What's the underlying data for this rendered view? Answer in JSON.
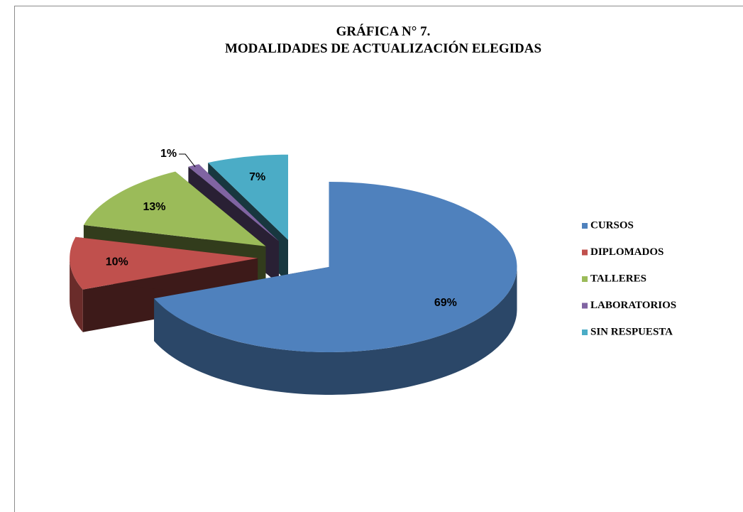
{
  "chart_data": {
    "type": "pie",
    "title": "GRÁFICA N° 7.",
    "subtitle": "MODALIDADES DE ACTUALIZACIÓN ELEGIDAS",
    "categories": [
      "CURSOS",
      "DIPLOMADOS",
      "TALLERES",
      "LABORATORIOS",
      "SIN RESPUESTA"
    ],
    "values": [
      69,
      10,
      13,
      1,
      7
    ],
    "value_labels": [
      "69%",
      "10%",
      "13%",
      "1%",
      "7%"
    ],
    "colors": [
      "#4f81bd",
      "#c0504d",
      "#9bbb59",
      "#8064a2",
      "#4bacc6"
    ],
    "legend": "right"
  }
}
